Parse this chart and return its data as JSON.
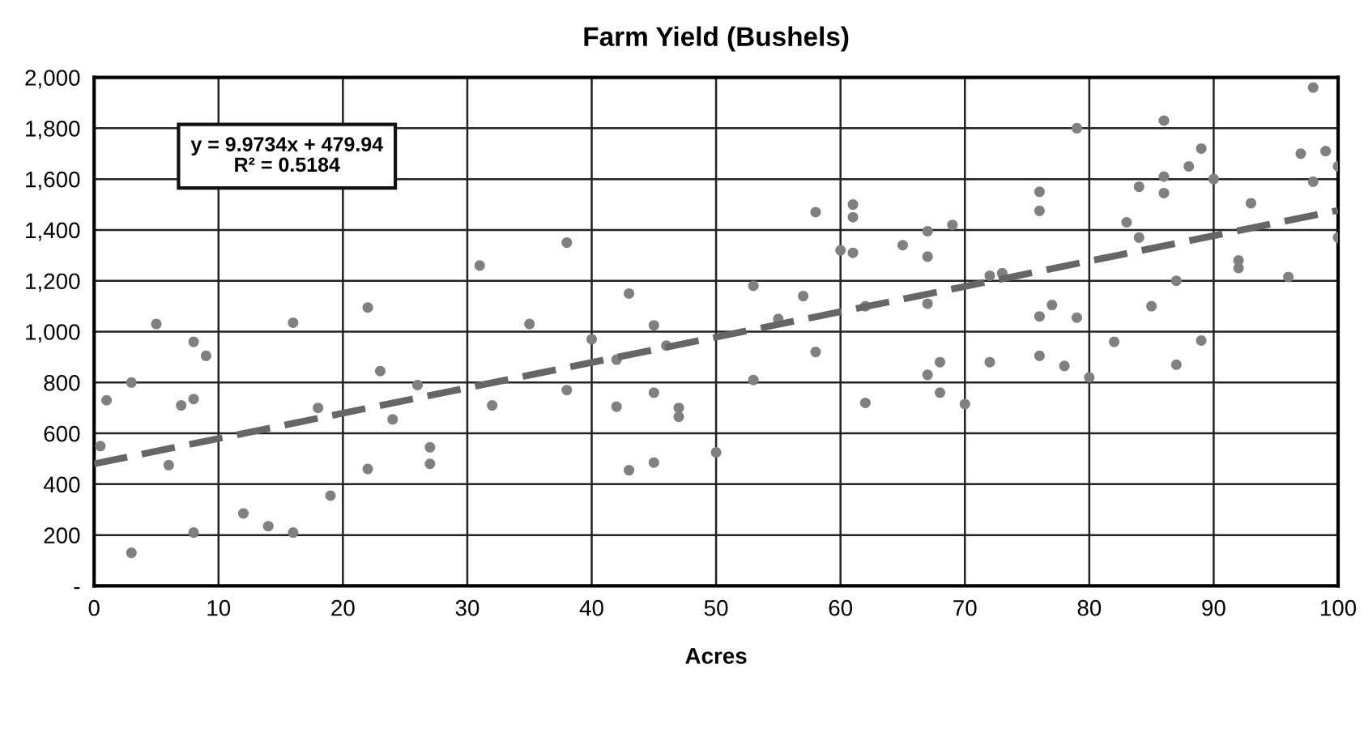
{
  "chart_data": {
    "type": "scatter",
    "title": "Farm Yield (Bushels)",
    "xlabel": "Acres",
    "annotations": [
      "y = 9.9734x + 479.94\nR² = 0.5184"
    ],
    "series": [
      {
        "color": "#808080",
        "marker": "circle",
        "x": [
          0.5,
          1,
          3,
          3,
          5,
          6,
          7,
          8,
          8,
          8,
          9,
          12,
          14,
          16,
          16,
          18,
          19,
          22,
          22,
          23,
          24,
          26,
          27,
          27,
          31,
          32,
          35,
          38,
          38,
          40,
          42,
          42,
          43,
          43,
          45,
          45,
          45,
          46,
          47,
          47,
          50,
          53,
          53,
          55,
          57,
          58,
          58,
          60,
          61,
          61,
          61,
          62,
          62,
          65,
          67,
          67,
          67,
          67,
          68,
          68,
          69,
          70,
          72,
          72,
          73,
          76,
          76,
          76,
          76,
          77,
          78,
          79,
          79,
          80,
          82,
          83,
          84,
          84,
          85,
          86,
          86,
          86,
          87,
          87,
          88,
          89,
          89,
          90,
          92,
          92,
          93,
          96,
          97,
          98,
          98,
          99,
          100,
          100
        ],
        "values": [
          550,
          730,
          800,
          130,
          1030,
          475,
          710,
          960,
          735,
          210,
          905,
          285,
          235,
          1035,
          210,
          700,
          355,
          1095,
          460,
          845,
          655,
          790,
          545,
          480,
          1260,
          710,
          1030,
          1350,
          770,
          970,
          890,
          705,
          1150,
          455,
          1025,
          760,
          485,
          945,
          700,
          665,
          525,
          1180,
          810,
          1050,
          1140,
          1470,
          920,
          1320,
          1500,
          1450,
          1310,
          1100,
          720,
          1340,
          1395,
          1295,
          1110,
          830,
          880,
          760,
          1420,
          715,
          1220,
          880,
          1230,
          1550,
          1475,
          1060,
          905,
          1105,
          865,
          1800,
          1055,
          820,
          960,
          1430,
          1570,
          1370,
          1100,
          1830,
          1610,
          1545,
          1200,
          870,
          1650,
          1720,
          965,
          1600,
          1280,
          1250,
          1505,
          1215,
          1700,
          1960,
          1590,
          1710,
          1650,
          1370
        ]
      },
      {
        "type": "line",
        "color": "#666666",
        "line_style": "dashed",
        "marker": "none",
        "x": [
          0,
          100
        ],
        "values": [
          480,
          1477
        ]
      }
    ],
    "xlim": [
      0,
      100
    ],
    "xticks": [
      0,
      10,
      20,
      30,
      40,
      50,
      60,
      70,
      80,
      90,
      100
    ],
    "ylim": [
      0,
      2000
    ],
    "yticks": [
      {
        "value": 0,
        "label": "-"
      },
      200,
      400,
      600,
      800,
      {
        "value": 1000,
        "label": "1,000"
      },
      {
        "value": 1200,
        "label": "1,200"
      },
      {
        "value": 1400,
        "label": "1,400"
      },
      {
        "value": 1600,
        "label": "1,600"
      },
      {
        "value": 1800,
        "label": "1,800"
      },
      {
        "value": 2000,
        "label": "2,000"
      }
    ],
    "grid": true,
    "legend": false
  }
}
